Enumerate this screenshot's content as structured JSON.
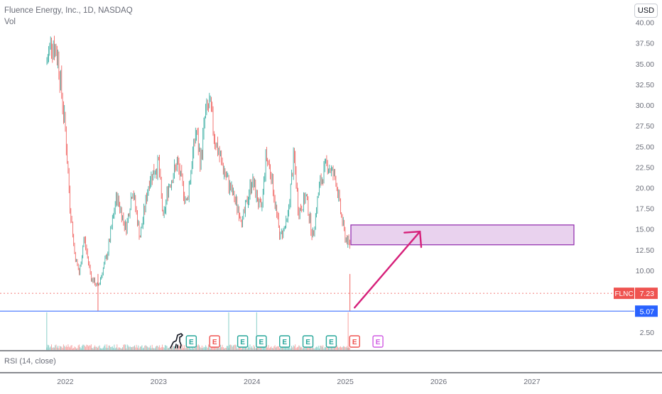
{
  "header": {
    "title": "Fluence Energy, Inc., 1D, NASDAQ",
    "volume_label": "Vol",
    "currency": "USD"
  },
  "rsi_label": "RSI (14, close)",
  "colors": {
    "up": "#26a69a",
    "down": "#ef5350",
    "accent": "#d6207a",
    "box_fill": "#e9d2ee",
    "box_border": "#8e24aa",
    "support": "#2962ff",
    "earnings_green": "#26a69a",
    "earnings_red": "#ef5350",
    "earnings_purple": "#d05ce3"
  },
  "chart_data": {
    "type": "candlestick",
    "symbol": "FLNC",
    "x_ticks": [
      "2022",
      "2023",
      "2024",
      "2025",
      "2026",
      "2027"
    ],
    "y_ticks": [
      "2.50",
      "10.00",
      "12.50",
      "15.00",
      "17.50",
      "20.00",
      "22.50",
      "25.00",
      "27.50",
      "30.00",
      "32.50",
      "35.00",
      "37.50",
      "40.00"
    ],
    "ylim": [
      0.8,
      41
    ],
    "x_domain": [
      2021.3,
      2027.45
    ],
    "series_anchor": {
      "x": [
        2021.8,
        2021.85,
        2021.92,
        2022.0,
        2022.05,
        2022.1,
        2022.15,
        2022.2,
        2022.28,
        2022.35,
        2022.4,
        2022.45,
        2022.55,
        2022.65,
        2022.72,
        2022.8,
        2022.9,
        2023.0,
        2023.05,
        2023.1,
        2023.2,
        2023.3,
        2023.4,
        2023.45,
        2023.5,
        2023.55,
        2023.6,
        2023.7,
        2023.8,
        2023.9,
        2024.0,
        2024.1,
        2024.15,
        2024.2,
        2024.3,
        2024.38,
        2024.45,
        2024.5,
        2024.58,
        2024.65,
        2024.72,
        2024.8,
        2024.9,
        2024.95,
        2025.0,
        2025.05
      ],
      "y": [
        35,
        38,
        36,
        27,
        18,
        12,
        9.5,
        14,
        9,
        8,
        10,
        12,
        19,
        15,
        20,
        14,
        21,
        23,
        16,
        20,
        23,
        18,
        27,
        23,
        29,
        30,
        26,
        22,
        19,
        16,
        21,
        17,
        24,
        22,
        14,
        16,
        24,
        17,
        19,
        14,
        20,
        23,
        21,
        17,
        14,
        13
      ]
    },
    "lows": [
      {
        "x": 2022.35,
        "y": 5.07
      },
      {
        "x": 2025.05,
        "y": 5.07
      }
    ],
    "last_price": 7.23,
    "last_price_label": "7.23",
    "support_level": 5.07,
    "support_label": "5.07",
    "target_zone": {
      "x_start": 2025.06,
      "x_end": 2027.45,
      "y_low": 13.1,
      "y_high": 15.5
    },
    "arrow": {
      "from": {
        "x": 2025.1,
        "y": 5.5
      },
      "to": {
        "x": 2025.8,
        "y": 14.7
      }
    },
    "earnings_markers": [
      {
        "x": 2023.35,
        "label": "E",
        "type": "green"
      },
      {
        "x": 2023.6,
        "label": "E",
        "type": "red"
      },
      {
        "x": 2023.9,
        "label": "E",
        "type": "green"
      },
      {
        "x": 2024.1,
        "label": "E",
        "type": "green"
      },
      {
        "x": 2024.35,
        "label": "E",
        "type": "green"
      },
      {
        "x": 2024.6,
        "label": "E",
        "type": "green"
      },
      {
        "x": 2024.85,
        "label": "E",
        "type": "green"
      },
      {
        "x": 2025.1,
        "label": "E",
        "type": "red"
      },
      {
        "x": 2025.35,
        "label": "E",
        "type": "purple"
      }
    ]
  }
}
